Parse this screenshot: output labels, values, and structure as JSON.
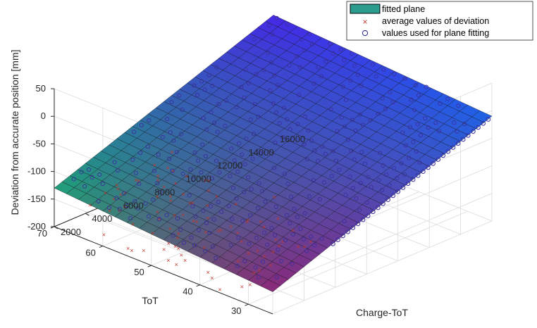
{
  "chart_data": {
    "type": "scatter3d-surface",
    "title": "",
    "xlabel": "Charge-ToT",
    "ylabel": "ToT",
    "zlabel": "Deviation from accurate position [mm]",
    "xlim": [
      2000,
      16000
    ],
    "ylim": [
      25,
      70
    ],
    "zlim": [
      -200,
      50
    ],
    "x_ticks": [
      "2000",
      "4000",
      "6000",
      "8000",
      "10000",
      "12000",
      "14000",
      "16000"
    ],
    "y_ticks": [
      "30",
      "40",
      "50",
      "60",
      "70"
    ],
    "z_ticks": [
      "-200",
      "-150",
      "-100",
      "-50",
      "0",
      "50"
    ],
    "grid": true,
    "legend_position": "top-right",
    "fitted_plane": {
      "name": "fitted plane",
      "color": "#2a9d8f",
      "corners": [
        {
          "x": 2000,
          "y": 70,
          "z": -130
        },
        {
          "x": 2000,
          "y": 25,
          "z": -160
        },
        {
          "x": 16000,
          "y": 25,
          "z": -10
        },
        {
          "x": 16000,
          "y": 70,
          "z": 15
        }
      ]
    },
    "series": [
      {
        "name": "average values of deviation",
        "marker": "x",
        "color": "#c0392b"
      },
      {
        "name": "values used for plane fitting",
        "marker": "o",
        "color": "#1f1f8f"
      }
    ]
  }
}
